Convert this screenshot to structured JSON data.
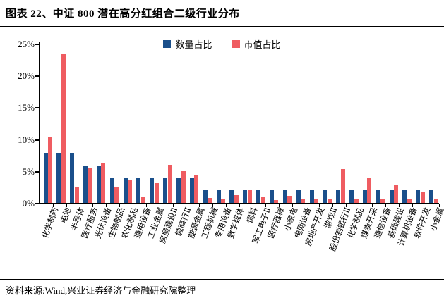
{
  "title": "图表 22、中证 800 潜在高分红组合二级行业分布",
  "footer": {
    "source": "资料来源:Wind,兴业证券经济与金融研究院整理"
  },
  "colors": {
    "series1": "#1A4F8B",
    "series2": "#EF5C61",
    "axis": "#000000"
  },
  "chart_data": {
    "type": "bar",
    "title": "中证 800 潜在高分红组合二级行业分布",
    "grid": false,
    "legend_position": "top-center",
    "ylim": [
      0,
      25
    ],
    "ylabel": "",
    "xlabel": "",
    "yticks": [
      "0%",
      "5%",
      "10%",
      "15%",
      "20%",
      "25%"
    ],
    "categories": [
      "化学制药",
      "电池",
      "半导体",
      "医疗服务",
      "光伏设备",
      "生物制品",
      "农化制品",
      "通用设备",
      "工业金属",
      "房屋建设Ⅱ",
      "城商行Ⅱ",
      "能源金属",
      "工程机械",
      "专用设备",
      "数字媒体",
      "饲料",
      "军工电子Ⅱ",
      "医疗器械",
      "小家电",
      "电网设备",
      "房地产开发",
      "游戏Ⅱ",
      "股份制银行Ⅱ",
      "化学制品",
      "煤炭开采",
      "通信设备",
      "基础建设",
      "计算机设备",
      "软件开发",
      "小金属"
    ],
    "series": [
      {
        "name": "数量占比",
        "color": "#1A4F8B",
        "values": [
          7.8,
          7.8,
          7.8,
          5.9,
          5.9,
          3.9,
          3.9,
          3.9,
          3.9,
          3.9,
          3.9,
          3.9,
          2.0,
          2.0,
          2.0,
          2.0,
          2.0,
          2.0,
          2.0,
          2.0,
          2.0,
          2.0,
          2.0,
          2.0,
          2.0,
          2.0,
          2.0,
          2.0,
          2.0,
          2.0
        ]
      },
      {
        "name": "市值占比",
        "color": "#EF5C61",
        "values": [
          10.4,
          23.3,
          2.4,
          5.5,
          6.2,
          2.5,
          3.7,
          1.0,
          3.1,
          6.0,
          5.0,
          4.3,
          0.8,
          0.7,
          1.2,
          2.0,
          0.9,
          0.4,
          1.1,
          0.7,
          0.5,
          0.7,
          5.3,
          0.7,
          4.0,
          0.5,
          2.9,
          0.5,
          1.8,
          0.7
        ]
      }
    ]
  }
}
